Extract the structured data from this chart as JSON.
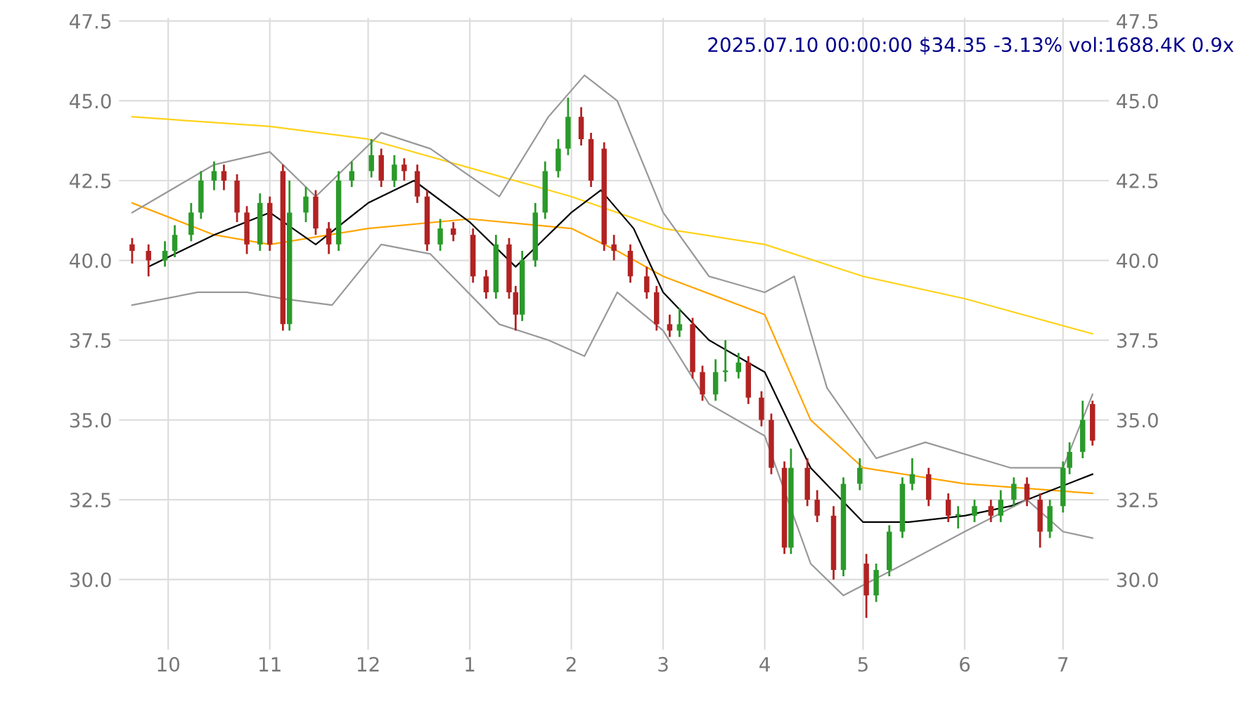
{
  "chart_data": {
    "type": "candlestick",
    "annotations": [
      "2025.07.10 00:00:00 $34.35 -3.13% vol:1688.4K 0.9x"
    ],
    "x": [
      "2024-09-20",
      "2024-09-25",
      "2024-09-30",
      "2024-10-03",
      "2024-10-08",
      "2024-10-11",
      "2024-10-15",
      "2024-10-18",
      "2024-10-22",
      "2024-10-25",
      "2024-10-29",
      "2024-11-01",
      "2024-11-05",
      "2024-11-07",
      "2024-11-12",
      "2024-11-15",
      "2024-11-19",
      "2024-11-22",
      "2024-11-26",
      "2024-12-02",
      "2024-12-05",
      "2024-12-09",
      "2024-12-12",
      "2024-12-16",
      "2024-12-19",
      "2024-12-23",
      "2024-12-27",
      "2025-01-02",
      "2025-01-06",
      "2025-01-09",
      "2025-01-13",
      "2025-01-15",
      "2025-01-17",
      "2025-01-21",
      "2025-01-24",
      "2025-01-28",
      "2025-01-31",
      "2025-02-04",
      "2025-02-07",
      "2025-02-11",
      "2025-02-14",
      "2025-02-19",
      "2025-02-24",
      "2025-02-27",
      "2025-03-03",
      "2025-03-06",
      "2025-03-10",
      "2025-03-13",
      "2025-03-17",
      "2025-03-20",
      "2025-03-24",
      "2025-03-27",
      "2025-03-31",
      "2025-04-03",
      "2025-04-07",
      "2025-04-09",
      "2025-04-14",
      "2025-04-17",
      "2025-04-22",
      "2025-04-25",
      "2025-04-30",
      "2025-05-02",
      "2025-05-05",
      "2025-05-09",
      "2025-05-13",
      "2025-05-16",
      "2025-05-21",
      "2025-05-27",
      "2025-05-30",
      "2025-06-04",
      "2025-06-09",
      "2025-06-12",
      "2025-06-16",
      "2025-06-20",
      "2025-06-24",
      "2025-06-27",
      "2025-07-01",
      "2025-07-03",
      "2025-07-07",
      "2025-07-10"
    ],
    "ohlc": [
      [
        40.5,
        40.7,
        39.9,
        40.3
      ],
      [
        40.3,
        40.5,
        39.5,
        40.0
      ],
      [
        40.0,
        40.6,
        39.8,
        40.3
      ],
      [
        40.3,
        41.1,
        40.1,
        40.8
      ],
      [
        40.8,
        41.8,
        40.6,
        41.5
      ],
      [
        41.5,
        42.8,
        41.3,
        42.5
      ],
      [
        42.5,
        43.1,
        42.2,
        42.8
      ],
      [
        42.8,
        43.0,
        42.2,
        42.5
      ],
      [
        42.5,
        42.7,
        41.2,
        41.5
      ],
      [
        41.5,
        41.7,
        40.2,
        40.5
      ],
      [
        40.5,
        42.1,
        40.3,
        41.8
      ],
      [
        41.8,
        42.0,
        40.3,
        40.5
      ],
      [
        42.8,
        43.0,
        37.8,
        38.0
      ],
      [
        38.0,
        42.5,
        37.8,
        41.5
      ],
      [
        41.5,
        42.3,
        41.2,
        42.0
      ],
      [
        42.0,
        42.2,
        40.8,
        41.0
      ],
      [
        41.0,
        41.2,
        40.2,
        40.5
      ],
      [
        40.5,
        42.8,
        40.3,
        42.5
      ],
      [
        42.5,
        43.1,
        42.3,
        42.8
      ],
      [
        42.8,
        43.8,
        42.6,
        43.3
      ],
      [
        43.3,
        43.5,
        42.3,
        42.5
      ],
      [
        42.5,
        43.3,
        42.3,
        43.0
      ],
      [
        43.0,
        43.2,
        42.5,
        42.8
      ],
      [
        42.8,
        43.0,
        41.8,
        42.0
      ],
      [
        42.0,
        42.2,
        40.3,
        40.5
      ],
      [
        40.5,
        41.3,
        40.3,
        41.0
      ],
      [
        41.0,
        41.2,
        40.6,
        40.8
      ],
      [
        40.8,
        41.0,
        39.3,
        39.5
      ],
      [
        39.5,
        39.7,
        38.8,
        39.0
      ],
      [
        39.0,
        40.8,
        38.8,
        40.5
      ],
      [
        40.5,
        40.7,
        38.8,
        39.0
      ],
      [
        39.0,
        39.2,
        37.8,
        38.3
      ],
      [
        38.3,
        40.3,
        38.1,
        40.0
      ],
      [
        40.0,
        41.8,
        39.8,
        41.5
      ],
      [
        41.5,
        43.1,
        41.3,
        42.8
      ],
      [
        42.8,
        43.8,
        42.6,
        43.5
      ],
      [
        43.5,
        45.1,
        43.3,
        44.5
      ],
      [
        44.5,
        44.8,
        43.6,
        43.8
      ],
      [
        43.8,
        44.0,
        42.3,
        42.5
      ],
      [
        43.5,
        43.7,
        40.3,
        40.5
      ],
      [
        40.5,
        40.8,
        40.0,
        40.3
      ],
      [
        40.3,
        40.5,
        39.3,
        39.5
      ],
      [
        39.5,
        39.8,
        38.8,
        39.0
      ],
      [
        39.0,
        39.2,
        37.8,
        38.0
      ],
      [
        38.0,
        38.3,
        37.6,
        37.8
      ],
      [
        37.8,
        38.5,
        37.6,
        38.0
      ],
      [
        38.0,
        38.2,
        36.3,
        36.5
      ],
      [
        36.5,
        36.7,
        35.6,
        35.8
      ],
      [
        35.8,
        36.9,
        35.6,
        36.5
      ],
      [
        36.5,
        37.5,
        36.2,
        36.5
      ],
      [
        36.5,
        37.1,
        36.3,
        36.8
      ],
      [
        36.8,
        37.0,
        35.5,
        35.7
      ],
      [
        35.7,
        35.9,
        34.8,
        35.0
      ],
      [
        35.0,
        35.2,
        33.3,
        33.5
      ],
      [
        33.5,
        33.7,
        30.8,
        31.0
      ],
      [
        31.0,
        34.1,
        30.8,
        33.5
      ],
      [
        33.5,
        33.8,
        32.3,
        32.5
      ],
      [
        32.5,
        32.8,
        31.8,
        32.0
      ],
      [
        32.0,
        32.3,
        30.0,
        30.3
      ],
      [
        30.3,
        33.2,
        30.1,
        33.0
      ],
      [
        33.0,
        33.8,
        32.8,
        33.5
      ],
      [
        30.5,
        30.8,
        28.8,
        29.5
      ],
      [
        29.5,
        30.5,
        29.3,
        30.3
      ],
      [
        30.3,
        31.7,
        30.1,
        31.5
      ],
      [
        31.5,
        33.2,
        31.3,
        33.0
      ],
      [
        33.0,
        33.8,
        32.8,
        33.3
      ],
      [
        33.3,
        33.5,
        32.3,
        32.5
      ],
      [
        32.5,
        32.7,
        31.8,
        32.0
      ],
      [
        32.0,
        32.3,
        31.6,
        32.0
      ],
      [
        32.0,
        32.5,
        31.8,
        32.3
      ],
      [
        32.3,
        32.5,
        31.8,
        32.0
      ],
      [
        32.0,
        32.8,
        31.8,
        32.5
      ],
      [
        32.5,
        33.2,
        32.3,
        33.0
      ],
      [
        33.0,
        33.2,
        32.3,
        32.5
      ],
      [
        32.5,
        32.7,
        31.0,
        31.5
      ],
      [
        31.5,
        32.5,
        31.3,
        32.3
      ],
      [
        32.3,
        33.7,
        32.1,
        33.5
      ],
      [
        33.5,
        34.3,
        33.3,
        34.0
      ],
      [
        34.0,
        35.6,
        33.8,
        35.0
      ],
      [
        35.5,
        35.6,
        34.2,
        34.35
      ]
    ],
    "series": [
      {
        "type": "line",
        "color": "#ffd21a",
        "x": [
          "2024-09-20",
          "2024-11-01",
          "2024-12-01",
          "2025-01-01",
          "2025-02-01",
          "2025-03-01",
          "2025-04-01",
          "2025-05-01",
          "2025-06-01",
          "2025-07-10"
        ],
        "values": [
          44.5,
          44.2,
          43.8,
          42.9,
          42.0,
          41.0,
          40.5,
          39.5,
          38.8,
          37.7
        ]
      },
      {
        "type": "line",
        "color": "#ffa500",
        "x": [
          "2024-09-20",
          "2024-10-15",
          "2024-11-01",
          "2024-12-01",
          "2025-01-01",
          "2025-02-01",
          "2025-02-15",
          "2025-03-01",
          "2025-04-01",
          "2025-04-15",
          "2025-05-01",
          "2025-06-01",
          "2025-07-10"
        ],
        "values": [
          41.8,
          40.8,
          40.5,
          41.0,
          41.3,
          41.0,
          40.3,
          39.5,
          38.3,
          35.0,
          33.5,
          33.0,
          32.7
        ]
      },
      {
        "type": "line",
        "color": "#000000",
        "x": [
          "2024-09-25",
          "2024-10-15",
          "2024-11-01",
          "2024-11-15",
          "2024-12-01",
          "2024-12-15",
          "2025-01-01",
          "2025-01-15",
          "2025-02-01",
          "2025-02-10",
          "2025-02-20",
          "2025-03-01",
          "2025-03-15",
          "2025-04-01",
          "2025-04-15",
          "2025-05-01",
          "2025-05-15",
          "2025-06-01",
          "2025-06-15",
          "2025-07-10"
        ],
        "values": [
          39.8,
          40.8,
          41.5,
          40.5,
          41.8,
          42.5,
          41.2,
          39.8,
          41.5,
          42.2,
          41.0,
          39.0,
          37.5,
          36.5,
          33.5,
          31.8,
          31.8,
          32.0,
          32.3,
          33.3
        ]
      },
      {
        "type": "line",
        "color": "#999999",
        "x": [
          "2024-09-20",
          "2024-10-15",
          "2024-11-01",
          "2024-11-15",
          "2024-12-05",
          "2024-12-20",
          "2025-01-10",
          "2025-01-25",
          "2025-02-05",
          "2025-02-15",
          "2025-03-01",
          "2025-03-15",
          "2025-04-01",
          "2025-04-10",
          "2025-04-20",
          "2025-05-05",
          "2025-05-20",
          "2025-06-15",
          "2025-07-01",
          "2025-07-10"
        ],
        "values": [
          41.5,
          43.0,
          43.4,
          42.0,
          44.0,
          43.5,
          42.0,
          44.5,
          45.8,
          45.0,
          41.5,
          39.5,
          39.0,
          39.5,
          36.0,
          33.8,
          34.3,
          33.5,
          33.5,
          35.8
        ]
      },
      {
        "type": "line",
        "color": "#999999",
        "x": [
          "2024-09-20",
          "2024-10-10",
          "2024-10-25",
          "2024-11-05",
          "2024-11-20",
          "2024-12-05",
          "2024-12-20",
          "2025-01-10",
          "2025-01-25",
          "2025-02-05",
          "2025-02-15",
          "2025-03-01",
          "2025-03-15",
          "2025-04-01",
          "2025-04-15",
          "2025-04-25",
          "2025-05-10",
          "2025-06-01",
          "2025-06-20",
          "2025-07-01",
          "2025-07-10"
        ],
        "values": [
          38.6,
          39.0,
          39.0,
          38.8,
          38.6,
          40.5,
          40.2,
          38.0,
          37.5,
          37.0,
          39.0,
          37.8,
          35.5,
          34.5,
          30.5,
          29.5,
          30.3,
          31.5,
          32.5,
          31.5,
          31.3
        ]
      }
    ],
    "xlim": [
      "2024-09-16",
      "2025-07-15"
    ],
    "xticks": [
      {
        "value": "2024-10-01",
        "label": "10"
      },
      {
        "value": "2024-11-01",
        "label": "11"
      },
      {
        "value": "2024-12-01",
        "label": "12"
      },
      {
        "value": "2025-01-01",
        "label": "1"
      },
      {
        "value": "2025-02-01",
        "label": "2"
      },
      {
        "value": "2025-03-01",
        "label": "3"
      },
      {
        "value": "2025-04-01",
        "label": "4"
      },
      {
        "value": "2025-05-01",
        "label": "5"
      },
      {
        "value": "2025-06-01",
        "label": "6"
      },
      {
        "value": "2025-07-01",
        "label": "7"
      }
    ],
    "ylim": [
      27.8,
      47.6
    ],
    "yticks": [
      {
        "value": 30,
        "label": "30.0"
      },
      {
        "value": 32.5,
        "label": "32.5"
      },
      {
        "value": 35,
        "label": "35.0"
      },
      {
        "value": 37.5,
        "label": "37.5"
      },
      {
        "value": 40,
        "label": "40.0"
      },
      {
        "value": 42.5,
        "label": "42.5"
      },
      {
        "value": 45,
        "label": "45.0"
      },
      {
        "value": 47.5,
        "label": "47.5"
      }
    ],
    "y2lim": [
      27.8,
      47.6
    ],
    "y2ticks": [
      {
        "value": 30,
        "label": "30.0"
      },
      {
        "value": 32.5,
        "label": "32.5"
      },
      {
        "value": 35,
        "label": "35.0"
      },
      {
        "value": 37.5,
        "label": "37.5"
      },
      {
        "value": 40,
        "label": "40.0"
      },
      {
        "value": 42.5,
        "label": "42.5"
      },
      {
        "value": 45,
        "label": "45.0"
      },
      {
        "value": 47.5,
        "label": "47.5"
      }
    ],
    "grid": true
  }
}
